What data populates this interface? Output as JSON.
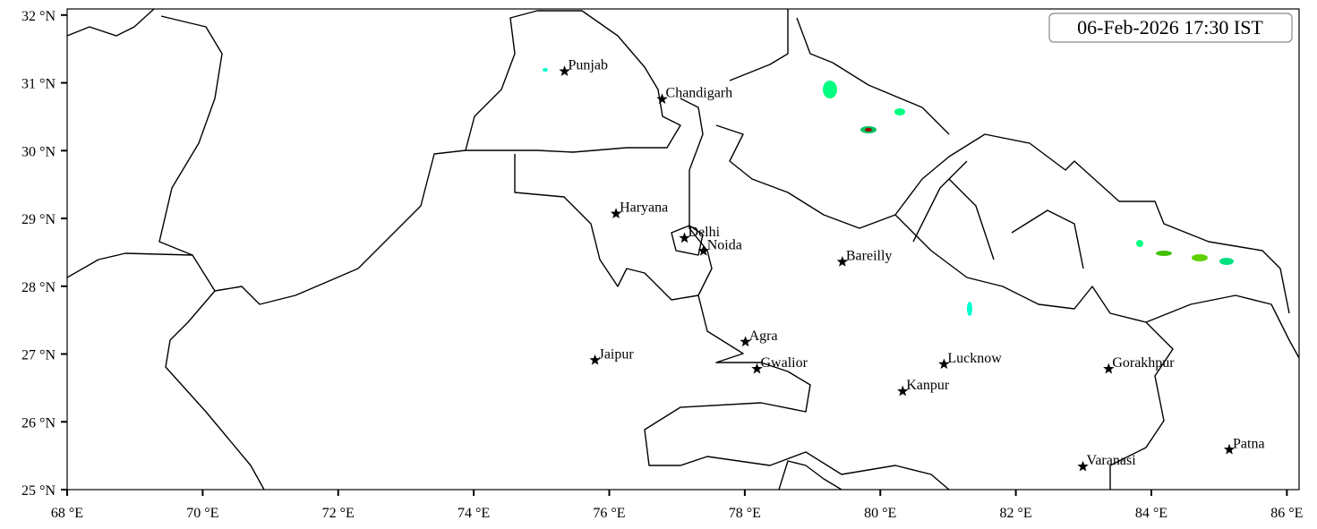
{
  "map": {
    "timestamp": "06-Feb-2026 17:30 IST",
    "xlim": [
      68,
      86.18
    ],
    "ylim": [
      25,
      32.09
    ],
    "xticks": [
      {
        "value": 68,
        "label": "68 °E"
      },
      {
        "value": 70,
        "label": "70 °E"
      },
      {
        "value": 72,
        "label": "72 °E"
      },
      {
        "value": 74,
        "label": "74 °E"
      },
      {
        "value": 76,
        "label": "76 °E"
      },
      {
        "value": 78,
        "label": "78 °E"
      },
      {
        "value": 80,
        "label": "80 °E"
      },
      {
        "value": 82,
        "label": "82 °E"
      },
      {
        "value": 84,
        "label": "84 °E"
      },
      {
        "value": 86,
        "label": "86 °E"
      }
    ],
    "yticks": [
      {
        "value": 25,
        "label": "25 °N"
      },
      {
        "value": 26,
        "label": "26 °N"
      },
      {
        "value": 27,
        "label": "27 °N"
      },
      {
        "value": 28,
        "label": "28 °N"
      },
      {
        "value": 29,
        "label": "29 °N"
      },
      {
        "value": 30,
        "label": "30 °N"
      },
      {
        "value": 31,
        "label": "31 °N"
      },
      {
        "value": 32,
        "label": "32 °N"
      }
    ],
    "cities": [
      {
        "name": "Punjab",
        "lon": 75.34,
        "lat": 31.17
      },
      {
        "name": "Chandigarh",
        "lon": 76.78,
        "lat": 30.76
      },
      {
        "name": "Haryana",
        "lon": 76.1,
        "lat": 29.07
      },
      {
        "name": "Delhi",
        "lon": 77.11,
        "lat": 28.71
      },
      {
        "name": "Noida",
        "lon": 77.39,
        "lat": 28.52
      },
      {
        "name": "Bareilly",
        "lon": 79.44,
        "lat": 28.36
      },
      {
        "name": "Jaipur",
        "lon": 75.79,
        "lat": 26.91
      },
      {
        "name": "Agra",
        "lon": 78.01,
        "lat": 27.18
      },
      {
        "name": "Gwalior",
        "lon": 78.18,
        "lat": 26.78
      },
      {
        "name": "Lucknow",
        "lon": 80.94,
        "lat": 26.85
      },
      {
        "name": "Kanpur",
        "lon": 80.33,
        "lat": 26.45
      },
      {
        "name": "Gorakhpur",
        "lon": 83.37,
        "lat": 26.78
      },
      {
        "name": "Varanasi",
        "lon": 82.99,
        "lat": 25.34
      },
      {
        "name": "Patna",
        "lon": 85.15,
        "lat": 25.59
      }
    ]
  }
}
